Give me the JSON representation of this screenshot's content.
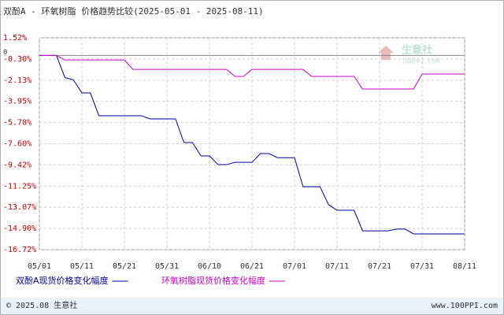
{
  "chart_data": {
    "type": "line",
    "title": "双酚A - 环氧树脂 价格趋势比较(2025-05-01 - 2025-08-11)",
    "zero_label": "0",
    "categories": [
      "05/01",
      null,
      null,
      null,
      null,
      "05/11",
      null,
      null,
      null,
      null,
      "05/21",
      null,
      null,
      null,
      null,
      "05/31",
      null,
      null,
      null,
      null,
      "06/10",
      null,
      null,
      null,
      null,
      "06/21",
      null,
      null,
      null,
      null,
      "07/01",
      null,
      null,
      null,
      null,
      "07/11",
      null,
      null,
      null,
      null,
      "07/21",
      null,
      null,
      null,
      null,
      "07/31",
      null,
      null,
      null,
      null,
      "08/11"
    ],
    "series": [
      {
        "name": "双酚A现货价格变化幅度",
        "color": "#0000a0",
        "values": [
          0,
          0,
          0,
          -1.9,
          -2.1,
          -3.23,
          -3.23,
          -5.19,
          -5.19,
          -5.19,
          -5.19,
          -5.19,
          -5.19,
          -5.46,
          -5.46,
          -5.46,
          -5.46,
          -7.5,
          -7.5,
          -8.65,
          -8.65,
          -9.4,
          -9.4,
          -9.2,
          -9.2,
          -9.2,
          -8.45,
          -8.45,
          -8.8,
          -8.8,
          -8.8,
          -11.3,
          -11.3,
          -11.3,
          -12.85,
          -13.33,
          -13.33,
          -13.33,
          -15.1,
          -15.1,
          -15.1,
          -15.1,
          -14.95,
          -14.95,
          -15.36,
          -15.36,
          -15.36,
          -15.36,
          -15.36,
          -15.36,
          -15.36
        ]
      },
      {
        "name": "环氧树脂现货价格变化幅度",
        "color": "#cc00cc",
        "values": [
          0,
          0,
          0,
          -0.39,
          -0.39,
          -0.39,
          -0.39,
          -0.39,
          -0.39,
          -0.39,
          -0.39,
          -1.2,
          -1.2,
          -1.2,
          -1.2,
          -1.2,
          -1.2,
          -1.2,
          -1.2,
          -1.2,
          -1.2,
          -1.2,
          -1.2,
          -1.8,
          -1.8,
          -1.2,
          -1.2,
          -1.2,
          -1.2,
          -1.2,
          -1.2,
          -1.2,
          -1.8,
          -1.8,
          -1.8,
          -1.8,
          -1.8,
          -1.8,
          -2.89,
          -2.89,
          -2.89,
          -2.89,
          -2.89,
          -2.89,
          -2.89,
          -1.6,
          -1.6,
          -1.6,
          -1.6,
          -1.6,
          -1.6
        ]
      }
    ],
    "ylim": [
      -16.72,
      1.52
    ],
    "yticks": [
      {
        "value": 1.52,
        "label": "1.52%"
      },
      {
        "value": -0.3,
        "label": "-0.30%"
      },
      {
        "value": -2.13,
        "label": "-2.13%"
      },
      {
        "value": -3.95,
        "label": "-3.95%"
      },
      {
        "value": -5.78,
        "label": "-5.78%"
      },
      {
        "value": -7.6,
        "label": "-7.60%"
      },
      {
        "value": -9.42,
        "label": "-9.42%"
      },
      {
        "value": -11.25,
        "label": "-11.25%"
      },
      {
        "value": -13.07,
        "label": "-13.07%"
      },
      {
        "value": -14.9,
        "label": "-14.90%"
      },
      {
        "value": -16.72,
        "label": "-16.72%"
      }
    ],
    "grid": true,
    "watermark": {
      "name": "生意社",
      "site": "100PPI.COM"
    },
    "footer": {
      "left": "© 2025.08 生意社",
      "right": "www.100PPI.com"
    }
  }
}
